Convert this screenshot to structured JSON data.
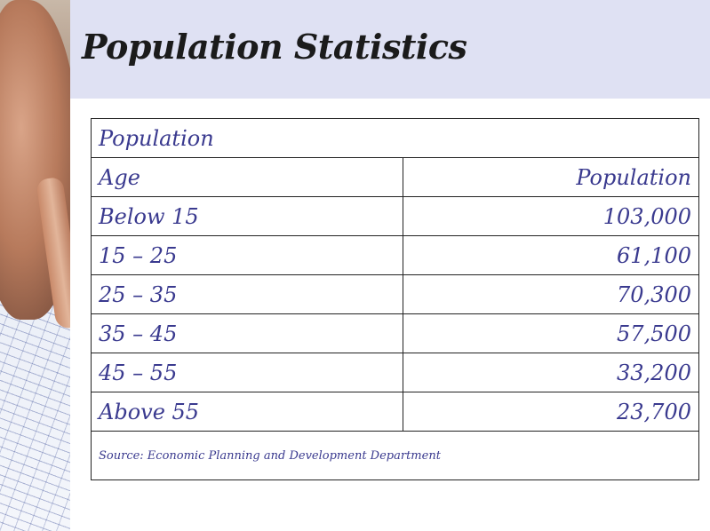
{
  "slide": {
    "title": "Population Statistics"
  },
  "table": {
    "caption": "Population",
    "headers": {
      "age": "Age",
      "population": "Population"
    },
    "rows": [
      {
        "age": "Below 15",
        "population": "103,000"
      },
      {
        "age": "15 – 25",
        "population": "61,100"
      },
      {
        "age": "25 – 35",
        "population": "70,300"
      },
      {
        "age": "35 – 45",
        "population": "57,500"
      },
      {
        "age": "45 – 55",
        "population": "33,200"
      },
      {
        "age": "Above 55",
        "population": "23,700"
      }
    ],
    "source": "Source: Economic Planning and Development Department"
  }
}
